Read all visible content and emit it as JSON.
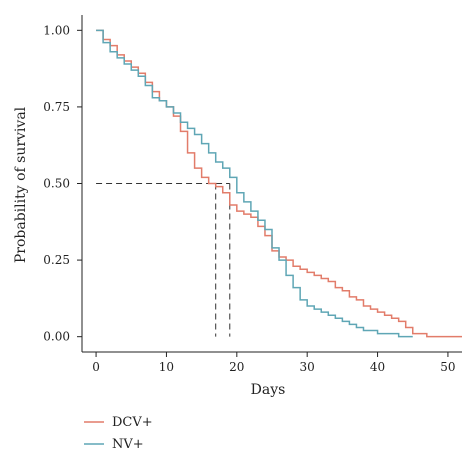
{
  "chart_data": {
    "type": "line",
    "step": true,
    "xlabel": "Days",
    "ylabel": "Probability of survival",
    "xlim": [
      -2,
      52
    ],
    "ylim": [
      -0.05,
      1.05
    ],
    "x_ticks": [
      0,
      10,
      20,
      30,
      40,
      50
    ],
    "y_ticks": [
      0.0,
      0.25,
      0.5,
      0.75,
      1.0
    ],
    "x_tick_labels": [
      "0",
      "10",
      "20",
      "30",
      "40",
      "50"
    ],
    "y_tick_labels": [
      "0.00",
      "0.25",
      "0.50",
      "0.75",
      "1.00"
    ],
    "grid": false,
    "legend_position": "bottom-left",
    "series": [
      {
        "name": "DCV+",
        "color": "#E27C6A",
        "x": [
          0,
          1,
          2,
          3,
          4,
          5,
          6,
          7,
          8,
          9,
          10,
          11,
          12,
          13,
          14,
          15,
          16,
          17,
          18,
          19,
          20,
          21,
          22,
          23,
          24,
          25,
          26,
          27,
          28,
          29,
          30,
          31,
          32,
          33,
          34,
          35,
          36,
          37,
          38,
          39,
          40,
          41,
          42,
          43,
          44,
          45,
          46,
          47,
          48,
          49,
          50,
          51,
          52
        ],
        "y": [
          1.0,
          0.97,
          0.95,
          0.92,
          0.9,
          0.88,
          0.86,
          0.83,
          0.8,
          0.77,
          0.75,
          0.72,
          0.67,
          0.6,
          0.55,
          0.52,
          0.5,
          0.49,
          0.47,
          0.43,
          0.41,
          0.4,
          0.39,
          0.36,
          0.33,
          0.28,
          0.26,
          0.25,
          0.23,
          0.22,
          0.21,
          0.2,
          0.19,
          0.18,
          0.16,
          0.15,
          0.13,
          0.12,
          0.1,
          0.09,
          0.08,
          0.07,
          0.06,
          0.05,
          0.03,
          0.01,
          0.01,
          0.0,
          0.0,
          0.0,
          0.0,
          0.0,
          0.0
        ]
      },
      {
        "name": "NV+",
        "color": "#5FA6B5",
        "x": [
          0,
          1,
          2,
          3,
          4,
          5,
          6,
          7,
          8,
          9,
          10,
          11,
          12,
          13,
          14,
          15,
          16,
          17,
          18,
          19,
          20,
          21,
          22,
          23,
          24,
          25,
          26,
          27,
          28,
          29,
          30,
          31,
          32,
          33,
          34,
          35,
          36,
          37,
          38,
          39,
          40,
          41,
          42,
          43,
          44,
          45
        ],
        "y": [
          1.0,
          0.96,
          0.93,
          0.91,
          0.89,
          0.87,
          0.85,
          0.82,
          0.78,
          0.77,
          0.75,
          0.73,
          0.7,
          0.68,
          0.66,
          0.63,
          0.6,
          0.57,
          0.55,
          0.52,
          0.47,
          0.44,
          0.41,
          0.38,
          0.35,
          0.29,
          0.25,
          0.2,
          0.16,
          0.12,
          0.1,
          0.09,
          0.08,
          0.07,
          0.06,
          0.05,
          0.04,
          0.03,
          0.02,
          0.02,
          0.01,
          0.01,
          0.01,
          0.0,
          0.0,
          0.0
        ]
      }
    ],
    "median_guides": {
      "y": 0.5,
      "x_values": [
        17,
        19
      ],
      "style": "dashed"
    }
  }
}
